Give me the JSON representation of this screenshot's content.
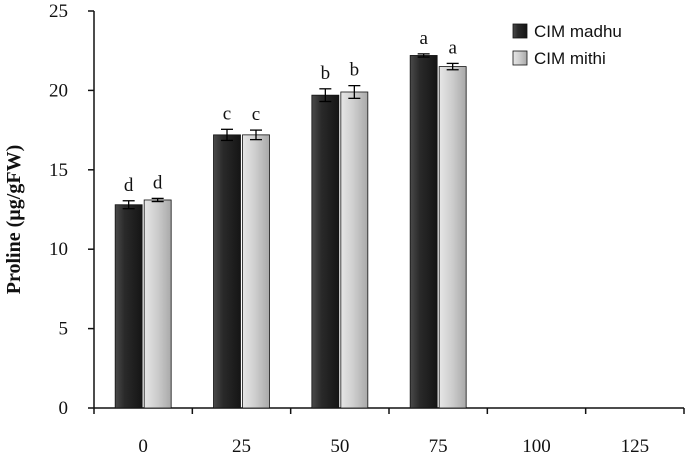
{
  "chart_data": {
    "type": "bar",
    "title": "",
    "xlabel": "",
    "ylabel": "Proline (µg/gFW)",
    "categories": [
      "0",
      "25",
      "50",
      "75",
      "100",
      "125"
    ],
    "ylim": [
      0,
      25
    ],
    "yticks": [
      0,
      5,
      10,
      15,
      20,
      25
    ],
    "grid": false,
    "legend_position": "top-right",
    "series": [
      {
        "name": "CIM madhu",
        "color": "#2a2a2a",
        "values": [
          12.8,
          17.2,
          19.7,
          22.2,
          null,
          null
        ],
        "errors": [
          0.25,
          0.35,
          0.4,
          0.1,
          null,
          null
        ],
        "labels": [
          "d",
          "c",
          "b",
          "a",
          null,
          null
        ]
      },
      {
        "name": "CIM mithi",
        "color": "#c8c8c8",
        "values": [
          13.1,
          17.2,
          19.9,
          21.5,
          null,
          null
        ],
        "errors": [
          0.1,
          0.3,
          0.4,
          0.2,
          null,
          null
        ],
        "labels": [
          "d",
          "c",
          "b",
          "a",
          null,
          null
        ]
      }
    ]
  }
}
